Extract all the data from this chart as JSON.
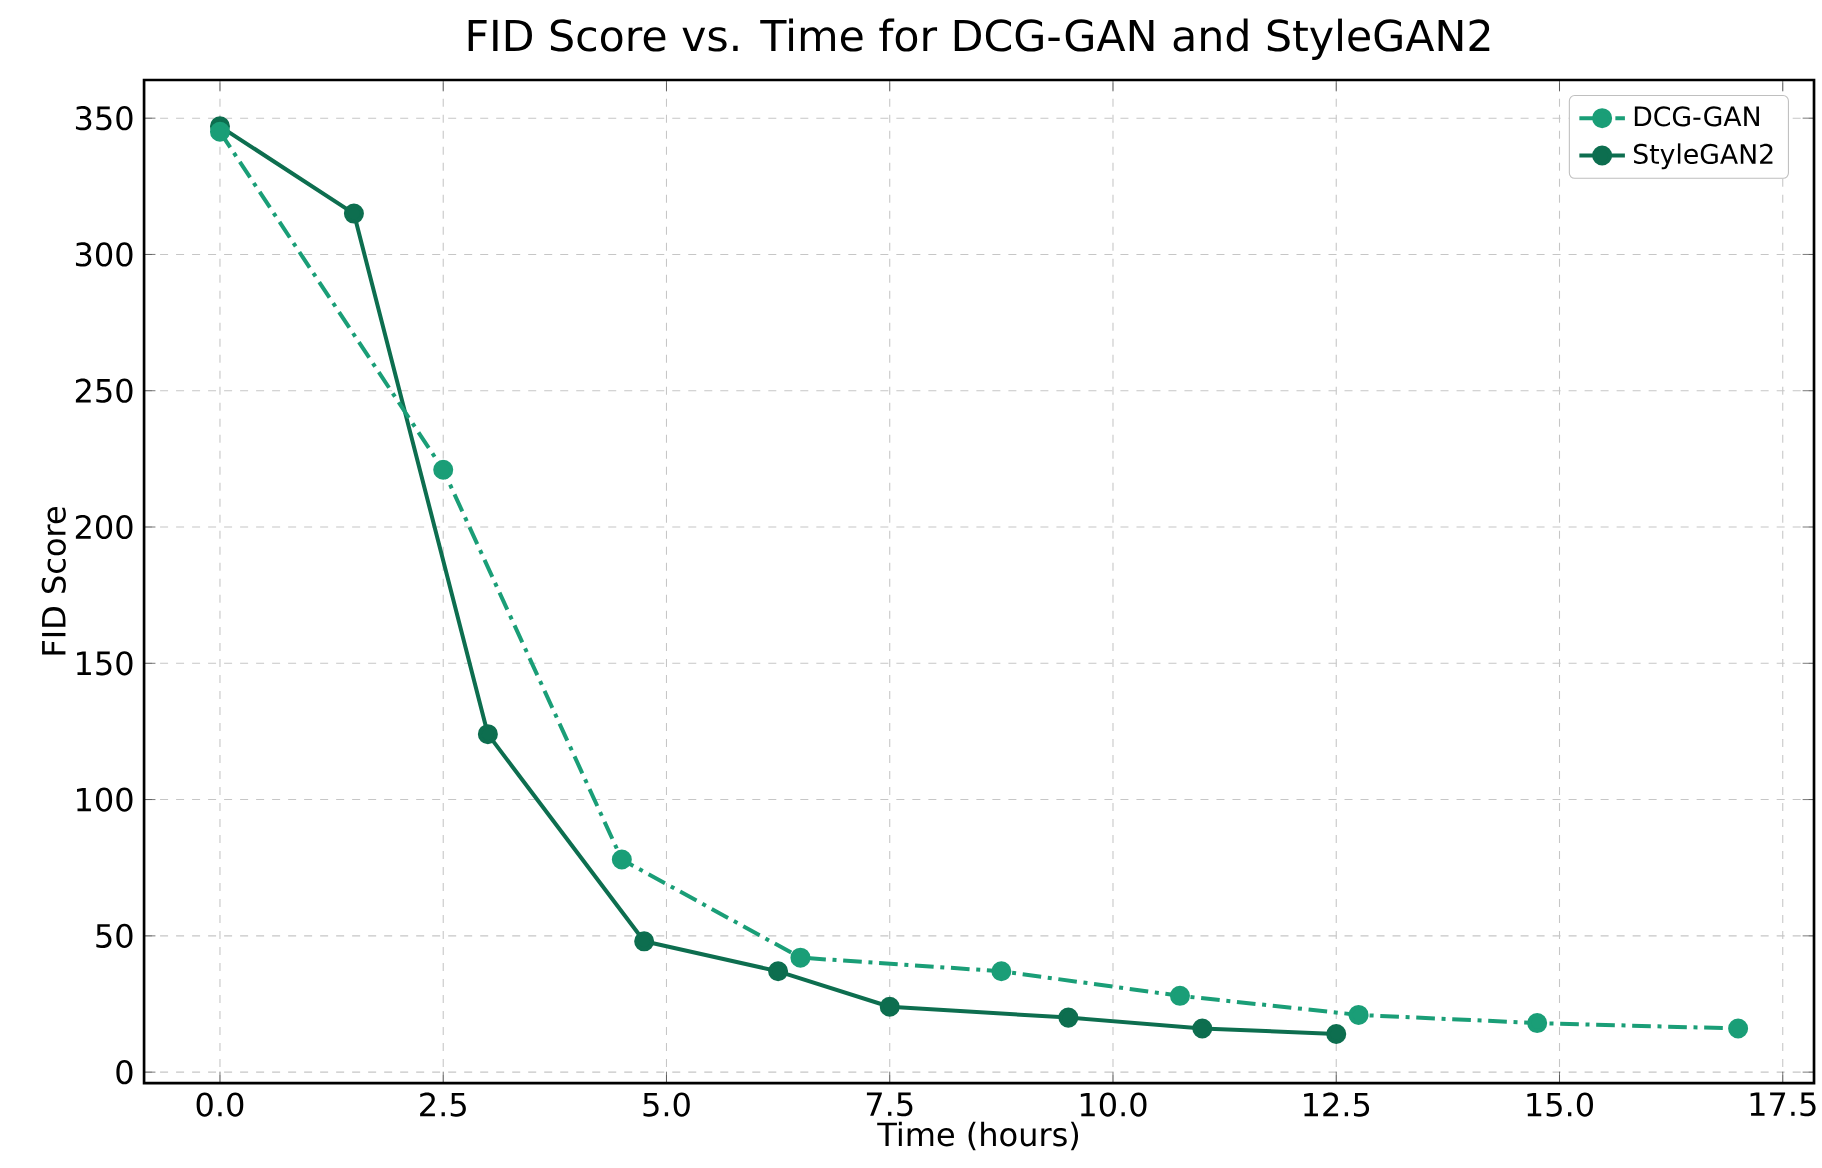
{
  "chart_data": {
    "type": "line",
    "title": "FID Score vs. Time for DCG-GAN and StyleGAN2",
    "xlabel": "Time (hours)",
    "ylabel": "FID Score",
    "xlim": [
      -0.85,
      17.85
    ],
    "ylim": [
      -4,
      364
    ],
    "xticks": [
      {
        "value": 0,
        "label": "0.0"
      },
      {
        "value": 2.5,
        "label": "2.5"
      },
      {
        "value": 5,
        "label": "5.0"
      },
      {
        "value": 7.5,
        "label": "7.5"
      },
      {
        "value": 10,
        "label": "10.0"
      },
      {
        "value": 12.5,
        "label": "12.5"
      },
      {
        "value": 15,
        "label": "15.0"
      },
      {
        "value": 17.5,
        "label": "17.5"
      }
    ],
    "yticks": [
      0,
      50,
      100,
      150,
      200,
      250,
      300,
      350
    ],
    "grid": true,
    "legend": "top right",
    "marker": "circle",
    "series": [
      {
        "name": "DCG-GAN",
        "color": "#1a9e77",
        "line_style": "dashdot",
        "x": [
          0,
          2.5,
          4.5,
          6.5,
          8.75,
          10.75,
          12.75,
          14.75,
          17
        ],
        "values": [
          345,
          221,
          78,
          42,
          37,
          28,
          21,
          18,
          16
        ]
      },
      {
        "name": "StyleGAN2",
        "color": "#0d6e4f",
        "line_style": "solid",
        "x": [
          0,
          1.5,
          3,
          4.75,
          6.25,
          7.5,
          9.5,
          11,
          12.5
        ],
        "values": [
          347,
          315,
          124,
          48,
          37,
          24,
          20,
          16,
          14
        ]
      }
    ]
  }
}
